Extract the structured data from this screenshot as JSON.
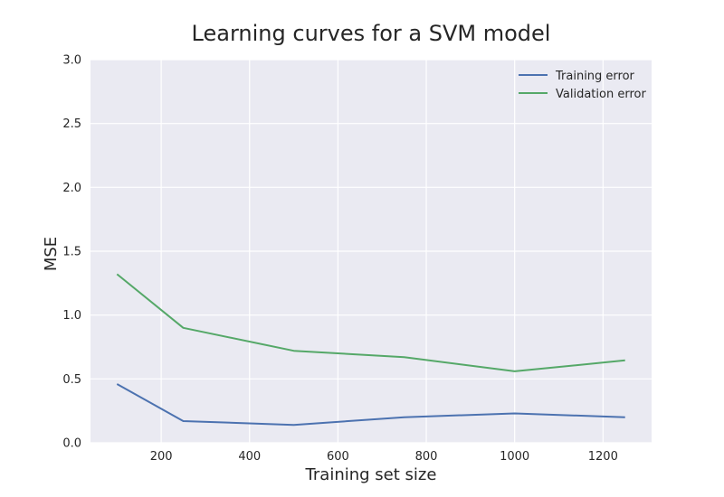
{
  "chart_data": {
    "type": "line",
    "title": "Learning curves for a SVM model",
    "xlabel": "Training set size",
    "ylabel": "MSE",
    "xlim": [
      40,
      1310
    ],
    "ylim": [
      0,
      3
    ],
    "x": [
      100,
      250,
      500,
      750,
      1000,
      1250
    ],
    "xticks": [
      200,
      400,
      600,
      800,
      1000,
      1200
    ],
    "yticks": [
      0.0,
      0.5,
      1.0,
      1.5,
      2.0,
      2.5,
      3.0
    ],
    "xtick_labels": [
      "200",
      "400",
      "600",
      "800",
      "1000",
      "1200"
    ],
    "ytick_labels": [
      "0.0",
      "0.5",
      "1.0",
      "1.5",
      "2.0",
      "2.5",
      "3.0"
    ],
    "series": [
      {
        "name": "Training error",
        "color": "#4c72b0",
        "values": [
          0.46,
          0.17,
          0.14,
          0.2,
          0.23,
          0.2
        ]
      },
      {
        "name": "Validation error",
        "color": "#55a868",
        "values": [
          1.32,
          0.9,
          0.72,
          0.67,
          0.56,
          0.645
        ]
      }
    ],
    "grid": true,
    "legend_position": "top-right",
    "background": "#eaeaf2"
  }
}
